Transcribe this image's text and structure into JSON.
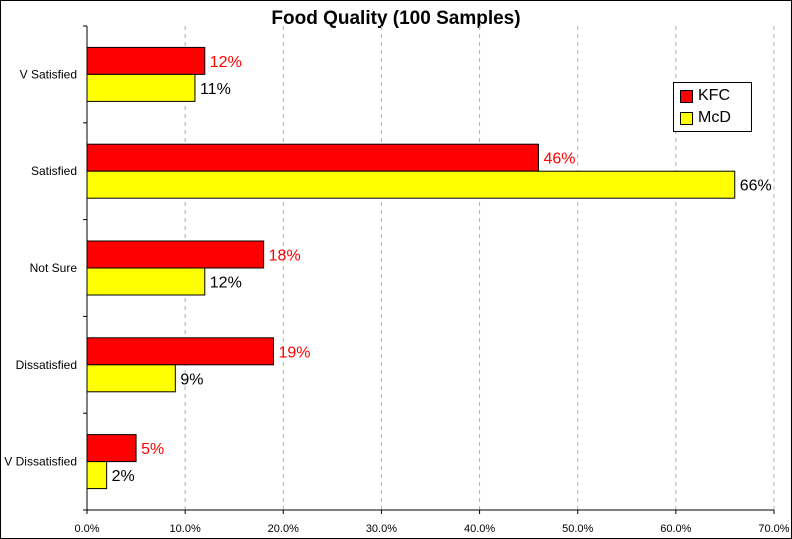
{
  "chart_data": {
    "type": "bar",
    "orientation": "horizontal",
    "title": "Food Quality (100 Samples)",
    "xlabel": "",
    "ylabel": "",
    "categories": [
      "V Satisfied",
      "Satisfied",
      "Not Sure",
      "Dissatisfied",
      "V Dissatisfied"
    ],
    "series": [
      {
        "name": "KFC",
        "color": "#ff0000",
        "label_color": "#ff0000",
        "values": [
          0.12,
          0.46,
          0.18,
          0.19,
          0.05
        ],
        "labels": [
          "12%",
          "46%",
          "18%",
          "19%",
          "5%"
        ]
      },
      {
        "name": "McD",
        "color": "#ffff00",
        "label_color": "#000000",
        "values": [
          0.11,
          0.66,
          0.12,
          0.09,
          0.02
        ],
        "labels": [
          "11%",
          "66%",
          "12%",
          "9%",
          "2%"
        ]
      }
    ],
    "xlim": [
      0,
      0.7
    ],
    "xticks": [
      0,
      0.1,
      0.2,
      0.3,
      0.4,
      0.5,
      0.6,
      0.7
    ],
    "xtick_labels": [
      "0.0%",
      "10.0%",
      "20.0%",
      "30.0%",
      "40.0%",
      "50.0%",
      "60.0%",
      "70.0%"
    ],
    "grid": "vertical dashed",
    "legend_position": "top-right"
  }
}
